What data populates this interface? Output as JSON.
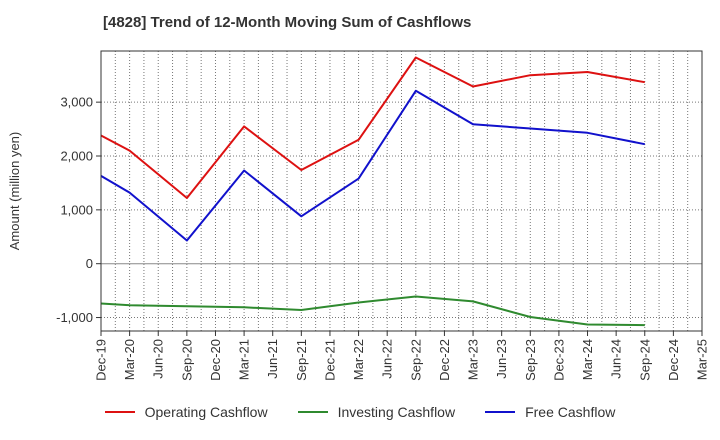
{
  "title": "[4828]  Trend of 12-Month Moving Sum of Cashflows",
  "chart_data": {
    "type": "line",
    "title": "[4828]  Trend of 12-Month Moving Sum of Cashflows",
    "xlabel": "",
    "ylabel": "Amount (million yen)",
    "categories": [
      "Dec-19",
      "Mar-20",
      "Jun-20",
      "Sep-20",
      "Dec-20",
      "Mar-21",
      "Jun-21",
      "Sep-21",
      "Dec-21",
      "Mar-22",
      "Jun-22",
      "Sep-22",
      "Dec-22",
      "Mar-23",
      "Jun-23",
      "Sep-23",
      "Dec-23",
      "Mar-24",
      "Jun-24",
      "Sep-24",
      "Dec-24",
      "Mar-25"
    ],
    "ylim": [
      -1250,
      3950
    ],
    "yticks": [
      -1000,
      0,
      1000,
      2000,
      3000
    ],
    "ytick_labels": [
      "-1,000",
      "0",
      "1,000",
      "2,000",
      "3,000"
    ],
    "grid": true,
    "legend_position": "bottom",
    "series": [
      {
        "name": "Operating Cashflow",
        "color": "#dd1111",
        "values": [
          2380,
          2100,
          null,
          1220,
          null,
          2550,
          null,
          1740,
          null,
          2300,
          null,
          3830,
          null,
          3290,
          null,
          3500,
          null,
          3560,
          null,
          3370,
          null,
          null
        ]
      },
      {
        "name": "Investing Cashflow",
        "color": "#2f8a2f",
        "values": [
          -740,
          -770,
          null,
          -790,
          null,
          -810,
          null,
          -860,
          null,
          -720,
          null,
          -610,
          null,
          -700,
          null,
          -990,
          null,
          -1130,
          null,
          -1140,
          null,
          null
        ]
      },
      {
        "name": "Free Cashflow",
        "color": "#1111cc",
        "values": [
          1630,
          1320,
          null,
          430,
          null,
          1730,
          null,
          880,
          null,
          1580,
          null,
          3210,
          null,
          2590,
          null,
          2510,
          null,
          2430,
          null,
          2220,
          null,
          null
        ]
      }
    ]
  }
}
